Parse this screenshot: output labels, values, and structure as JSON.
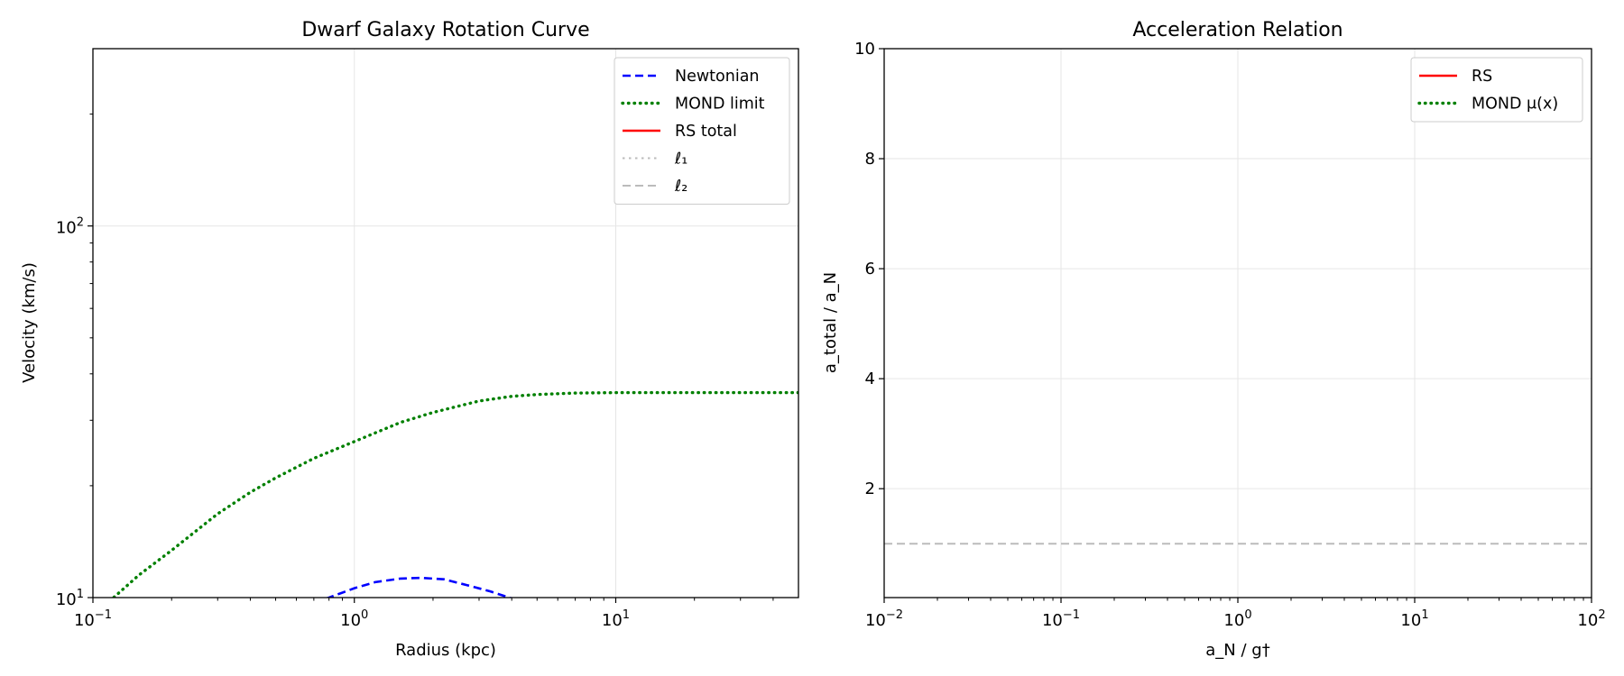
{
  "chart_data": [
    {
      "type": "line",
      "title": "Dwarf Galaxy Rotation Curve",
      "xlabel": "Radius (kpc)",
      "ylabel": "Velocity (km/s)",
      "xscale": "log",
      "yscale": "log",
      "xlim": [
        0.1,
        50
      ],
      "ylim": [
        10,
        300
      ],
      "xticks": [
        {
          "value": 0.1,
          "base": "10",
          "exp": "−1"
        },
        {
          "value": 1,
          "base": "10",
          "exp": "0"
        },
        {
          "value": 10,
          "base": "10",
          "exp": "1"
        }
      ],
      "yticks": [
        {
          "value": 10,
          "base": "10",
          "exp": "1"
        },
        {
          "value": 100,
          "base": "10",
          "exp": "2"
        }
      ],
      "grid": true,
      "legend_position": "top-right",
      "series": [
        {
          "name": "Newtonian",
          "color": "#0000ff",
          "style": "dashed",
          "x": [
            0.7,
            0.8,
            1.0,
            1.2,
            1.5,
            1.8,
            2.2,
            2.7,
            3.3,
            4.0,
            5.0,
            6.0
          ],
          "y": [
            9.7,
            10.0,
            10.6,
            11.0,
            11.25,
            11.3,
            11.2,
            10.8,
            10.4,
            9.95,
            9.3,
            8.8
          ]
        },
        {
          "name": "MOND limit",
          "color": "#008000",
          "style": "dotted",
          "x": [
            0.1,
            0.12,
            0.15,
            0.2,
            0.3,
            0.4,
            0.5,
            0.7,
            1.0,
            1.5,
            2.0,
            3.0,
            4.0,
            5.0,
            7.0,
            10,
            20,
            50
          ],
          "y": [
            9.4,
            10.0,
            11.5,
            13.4,
            16.8,
            19.2,
            21.0,
            23.7,
            26.3,
            29.6,
            31.5,
            33.8,
            34.8,
            35.2,
            35.5,
            35.6,
            35.6,
            35.6
          ]
        },
        {
          "name": "RS total",
          "color": "#ff0000",
          "style": "solid",
          "x": [],
          "y": []
        }
      ],
      "reference_lines": [
        {
          "name": "ℓ₁",
          "color": "#bbbbbb",
          "style": "dotted"
        },
        {
          "name": "ℓ₂",
          "color": "#bbbbbb",
          "style": "dashed"
        }
      ]
    },
    {
      "type": "line",
      "title": "Acceleration Relation",
      "xlabel": "a_N / g†",
      "ylabel": "a_total / a_N",
      "xscale": "log",
      "yscale": "linear",
      "xlim": [
        0.01,
        100
      ],
      "ylim": [
        0.02,
        10
      ],
      "xticks": [
        {
          "value": 0.01,
          "base": "10",
          "exp": "−2"
        },
        {
          "value": 0.1,
          "base": "10",
          "exp": "−1"
        },
        {
          "value": 1,
          "base": "10",
          "exp": "0"
        },
        {
          "value": 10,
          "base": "10",
          "exp": "1"
        },
        {
          "value": 100,
          "base": "10",
          "exp": "2"
        }
      ],
      "yticks": [
        {
          "value": 2,
          "label": "2"
        },
        {
          "value": 4,
          "label": "4"
        },
        {
          "value": 6,
          "label": "6"
        },
        {
          "value": 8,
          "label": "8"
        },
        {
          "value": 10,
          "label": "10"
        }
      ],
      "grid": true,
      "legend_position": "top-right",
      "series": [
        {
          "name": "RS",
          "color": "#ff0000",
          "style": "solid",
          "x": [],
          "y": []
        },
        {
          "name": "MOND μ(x)",
          "color": "#008000",
          "style": "dotted",
          "x": [],
          "y": []
        }
      ],
      "reference_lines": [
        {
          "orientation": "horizontal",
          "y": 1,
          "color": "#bbbbbb",
          "style": "dashed"
        }
      ]
    }
  ]
}
